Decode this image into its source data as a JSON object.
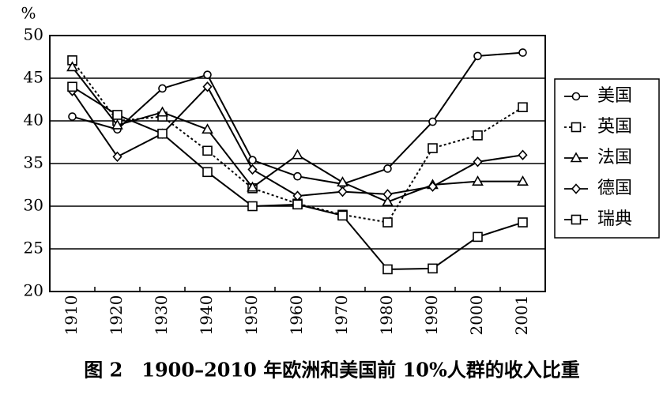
{
  "chart_data": {
    "type": "line",
    "title": "图 2　1900–2010 年欧洲和美国前 10%人群的收入比重",
    "y_label": "%",
    "categories": [
      "1910",
      "1920",
      "1930",
      "1940",
      "1950",
      "1960",
      "1970",
      "1980",
      "1990",
      "2000",
      "2001"
    ],
    "ylim": [
      20,
      50
    ],
    "yticks": [
      20,
      25,
      30,
      35,
      40,
      45,
      50
    ],
    "grid": true,
    "legend": "right",
    "series": [
      {
        "name": "美国",
        "color": "#000000",
        "marker": "circle",
        "dash": false,
        "values": [
          40.5,
          39,
          43.8,
          45.4,
          35.4,
          33.5,
          32.6,
          34.4,
          39.9,
          47.6,
          48
        ]
      },
      {
        "name": "英国",
        "color": "#000000",
        "marker": "square",
        "dash": true,
        "values": [
          47.1,
          40,
          40.5,
          36.5,
          32.1,
          30.3,
          29,
          28.1,
          36.8,
          38.3,
          41.6
        ]
      },
      {
        "name": "法国",
        "color": "#000000",
        "marker": "triangle",
        "dash": false,
        "values": [
          46.3,
          39.5,
          41,
          39,
          32.2,
          36,
          32.8,
          30.5,
          32.5,
          32.9,
          32.9
        ]
      },
      {
        "name": "德国",
        "color": "#000000",
        "marker": "diamond",
        "dash": false,
        "values": [
          43.5,
          35.8,
          38.5,
          44,
          34.3,
          31.2,
          31.7,
          31.4,
          32.3,
          35.2,
          36
        ]
      },
      {
        "name": "瑞典",
        "color": "#000000",
        "marker": "square",
        "dash": false,
        "values": [
          44,
          40.7,
          38.5,
          34,
          30,
          30.2,
          28.9,
          22.6,
          22.7,
          26.4,
          28.1
        ]
      }
    ]
  }
}
